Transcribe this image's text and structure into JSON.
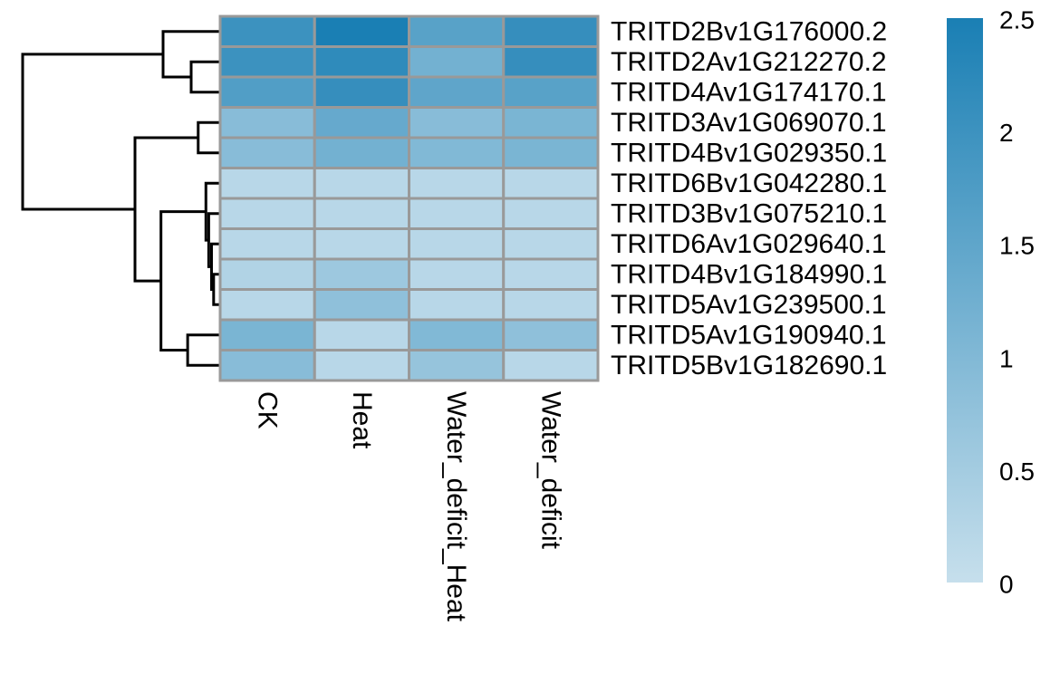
{
  "chart_data": {
    "type": "heatmap",
    "title": "",
    "columns": [
      "CK",
      "Heat",
      "Water_deficit_Heat",
      "Water_deficit"
    ],
    "rows": [
      "TRITD2Bv1G176000.2",
      "TRITD2Av1G212270.2",
      "TRITD4Av1G174170.1",
      "TRITD3Av1G069070.1",
      "TRITD4Bv1G029350.1",
      "TRITD6Bv1G042280.1",
      "TRITD3Bv1G075210.1",
      "TRITD6Av1G029640.1",
      "TRITD4Bv1G184990.1",
      "TRITD5Av1G239500.1",
      "TRITD5Av1G190940.1",
      "TRITD5Bv1G182690.1"
    ],
    "values": [
      [
        2.0,
        2.5,
        1.6,
        2.1
      ],
      [
        2.0,
        2.2,
        1.2,
        2.1
      ],
      [
        1.7,
        2.1,
        1.5,
        1.6
      ],
      [
        0.9,
        1.4,
        0.9,
        1.1
      ],
      [
        0.9,
        1.2,
        1.0,
        1.1
      ],
      [
        0.2,
        0.2,
        0.2,
        0.2
      ],
      [
        0.2,
        0.2,
        0.2,
        0.2
      ],
      [
        0.2,
        0.2,
        0.2,
        0.2
      ],
      [
        0.3,
        0.6,
        0.2,
        0.2
      ],
      [
        0.2,
        0.8,
        0.2,
        0.2
      ],
      [
        1.1,
        0.2,
        1.0,
        0.8
      ],
      [
        0.9,
        0.2,
        0.7,
        0.2
      ]
    ],
    "color_scale": {
      "min": 0,
      "max": 2.5,
      "low_color": "#c6dfec",
      "high_color": "#1a7fb4"
    },
    "legend": {
      "placement": "right",
      "ticks": [
        0,
        0.5,
        1,
        1.5,
        2,
        2.5
      ],
      "tick_labels": [
        "0",
        "0.5",
        "1",
        "1.5",
        "2",
        "2.5"
      ]
    },
    "row_dendrogram": [
      {
        "a": 1,
        "b": 2,
        "height": 0.4
      },
      {
        "a": 0,
        "b": "n0",
        "height": 0.8
      },
      {
        "a": 3,
        "b": 4,
        "height": 0.3
      },
      {
        "a": 8,
        "b": 9,
        "height": 0.08
      },
      {
        "a": 7,
        "b": "n3",
        "height": 0.11
      },
      {
        "a": 6,
        "b": "n4",
        "height": 0.15
      },
      {
        "a": 5,
        "b": "n5",
        "height": 0.19
      },
      {
        "a": 10,
        "b": 11,
        "height": 0.45
      },
      {
        "a": "n6",
        "b": "n7",
        "height": 0.83
      },
      {
        "a": "n2",
        "b": "n8",
        "height": 1.2
      },
      {
        "a": "n1",
        "b": "n9",
        "height": 2.8
      }
    ]
  }
}
